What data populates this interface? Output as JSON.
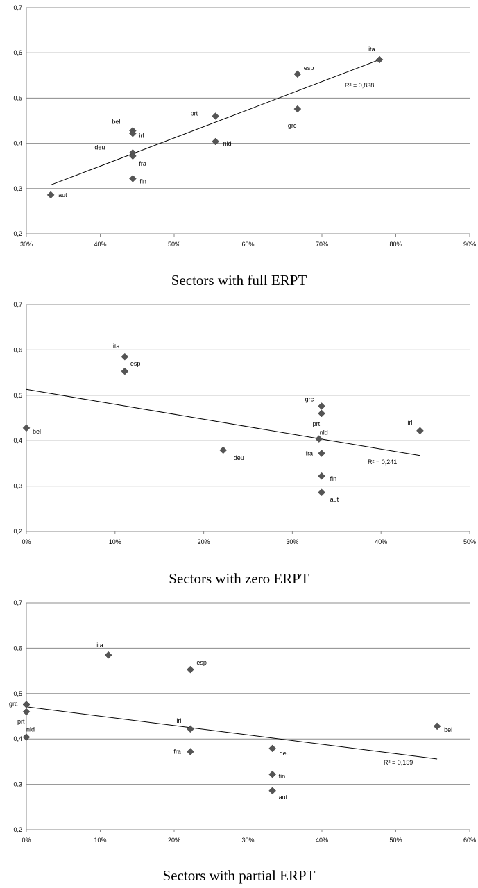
{
  "chart_data": [
    {
      "type": "scatter",
      "title": "Sectors with full ERPT",
      "xlim": [
        0.3,
        0.9
      ],
      "ylim": [
        0.2,
        0.7
      ],
      "x_ticks": [
        "30%",
        "40%",
        "50%",
        "60%",
        "70%",
        "80%",
        "90%"
      ],
      "y_ticks": [
        "0,2",
        "0,3",
        "0,4",
        "0,5",
        "0,6",
        "0,7"
      ],
      "points": [
        {
          "label": "ita",
          "x": 0.778,
          "y": 0.585
        },
        {
          "label": "esp",
          "x": 0.667,
          "y": 0.553
        },
        {
          "label": "grc",
          "x": 0.667,
          "y": 0.476
        },
        {
          "label": "prt",
          "x": 0.556,
          "y": 0.46
        },
        {
          "label": "nld",
          "x": 0.556,
          "y": 0.404
        },
        {
          "label": "bel",
          "x": 0.444,
          "y": 0.428
        },
        {
          "label": "irl",
          "x": 0.444,
          "y": 0.422
        },
        {
          "label": "deu",
          "x": 0.444,
          "y": 0.379
        },
        {
          "label": "fra",
          "x": 0.444,
          "y": 0.372
        },
        {
          "label": "fin",
          "x": 0.444,
          "y": 0.322
        },
        {
          "label": "aut",
          "x": 0.333,
          "y": 0.286
        }
      ],
      "trendline": {
        "x": [
          0.333,
          0.778
        ],
        "y": [
          0.308,
          0.585
        ]
      },
      "r2_label": "R² = 0,838",
      "grid": "horizontal"
    },
    {
      "type": "scatter",
      "title": "Sectors with zero ERPT",
      "xlim": [
        0,
        0.5
      ],
      "ylim": [
        0.2,
        0.7
      ],
      "x_ticks": [
        "0%",
        "10%",
        "20%",
        "30%",
        "40%",
        "50%"
      ],
      "y_ticks": [
        "0,2",
        "0,3",
        "0,4",
        "0,5",
        "0,6",
        "0,7"
      ],
      "points": [
        {
          "label": "ita",
          "x": 0.111,
          "y": 0.585
        },
        {
          "label": "esp",
          "x": 0.111,
          "y": 0.553
        },
        {
          "label": "bel",
          "x": 0.0,
          "y": 0.428
        },
        {
          "label": "deu",
          "x": 0.222,
          "y": 0.379
        },
        {
          "label": "grc",
          "x": 0.333,
          "y": 0.476
        },
        {
          "label": "prt",
          "x": 0.333,
          "y": 0.46
        },
        {
          "label": "nld",
          "x": 0.33,
          "y": 0.404
        },
        {
          "label": "fra",
          "x": 0.333,
          "y": 0.372
        },
        {
          "label": "fin",
          "x": 0.333,
          "y": 0.322
        },
        {
          "label": "aut",
          "x": 0.333,
          "y": 0.286
        },
        {
          "label": "irl",
          "x": 0.444,
          "y": 0.422
        }
      ],
      "trendline": {
        "x": [
          0.0,
          0.444
        ],
        "y": [
          0.513,
          0.367
        ]
      },
      "r2_label": "R² = 0,241",
      "grid": "horizontal"
    },
    {
      "type": "scatter",
      "title": "Sectors with partial ERPT",
      "xlim": [
        0,
        0.6
      ],
      "ylim": [
        0.2,
        0.7
      ],
      "x_ticks": [
        "0%",
        "10%",
        "20%",
        "30%",
        "40%",
        "50%",
        "60%"
      ],
      "y_ticks": [
        "0,2",
        "0,3",
        "0,4",
        "0,5",
        "0,6",
        "0,7"
      ],
      "points": [
        {
          "label": "grc",
          "x": 0.0,
          "y": 0.476
        },
        {
          "label": "prt",
          "x": 0.0,
          "y": 0.46
        },
        {
          "label": "nld",
          "x": 0.0,
          "y": 0.404
        },
        {
          "label": "ita",
          "x": 0.111,
          "y": 0.585
        },
        {
          "label": "esp",
          "x": 0.222,
          "y": 0.553
        },
        {
          "label": "irl",
          "x": 0.222,
          "y": 0.422
        },
        {
          "label": "fra",
          "x": 0.222,
          "y": 0.372
        },
        {
          "label": "deu",
          "x": 0.333,
          "y": 0.379
        },
        {
          "label": "fin",
          "x": 0.333,
          "y": 0.322
        },
        {
          "label": "aut",
          "x": 0.333,
          "y": 0.286
        },
        {
          "label": "bel",
          "x": 0.556,
          "y": 0.428
        }
      ],
      "trendline": {
        "x": [
          0.0,
          0.556
        ],
        "y": [
          0.471,
          0.356
        ]
      },
      "r2_label": "R² = 0,159",
      "grid": "horizontal"
    }
  ]
}
